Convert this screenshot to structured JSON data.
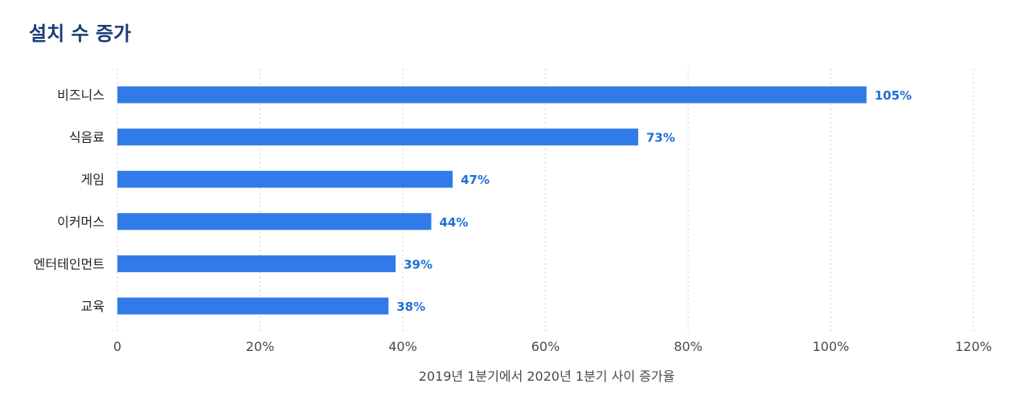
{
  "chart_data": {
    "type": "bar",
    "orientation": "horizontal",
    "title": "설치 수 증가",
    "xlabel": "2019년 1분기에서 2020년 1분기 사이 증가율",
    "ylabel": "",
    "categories": [
      "비즈니스",
      "식음료",
      "게임",
      "이커머스",
      "엔터테인먼트",
      "교육"
    ],
    "values": [
      105,
      73,
      47,
      44,
      39,
      38
    ],
    "value_labels": [
      "105%",
      "73%",
      "47%",
      "44%",
      "39%",
      "38%"
    ],
    "xlim": [
      0,
      120
    ],
    "xticks": [
      0,
      20,
      40,
      60,
      80,
      100,
      120
    ],
    "xtick_labels": [
      "0",
      "20%",
      "40%",
      "60%",
      "80%",
      "100%",
      "120%"
    ],
    "grid": "vertical-dotted",
    "legend": "none",
    "colors": {
      "bar": "#317be8",
      "value_text": "#1f6fd6",
      "title": "#1b3a78",
      "grid": "#c8c8c8"
    }
  }
}
